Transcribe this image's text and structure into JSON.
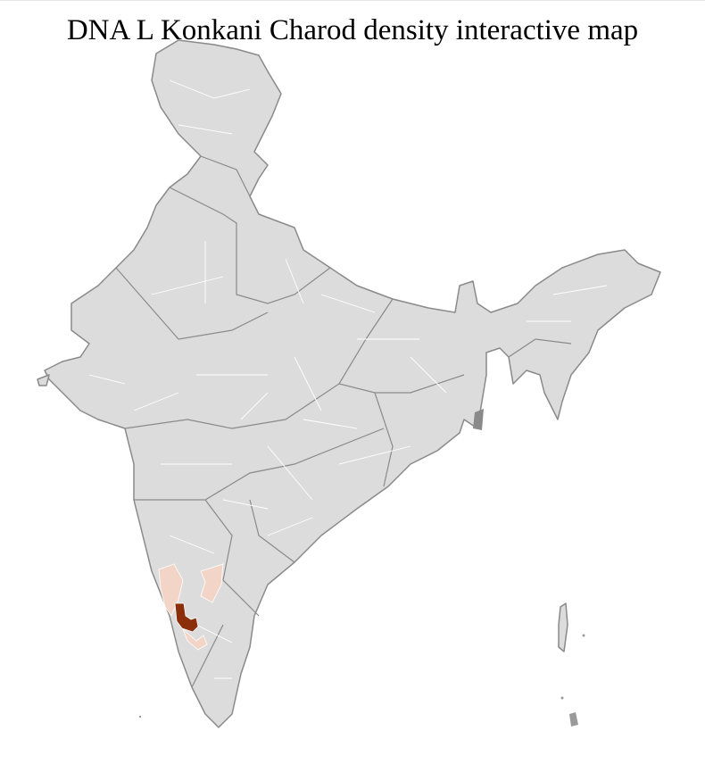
{
  "title": "DNA L Konkani Charod density interactive map",
  "map": {
    "region": "India districts",
    "colors": {
      "no_data": "#dcdcdc",
      "border_district": "#ffffff",
      "border_state": "#8a8a8a",
      "low_density": "#f2d5c7",
      "high_density": "#8b2e0a"
    }
  }
}
